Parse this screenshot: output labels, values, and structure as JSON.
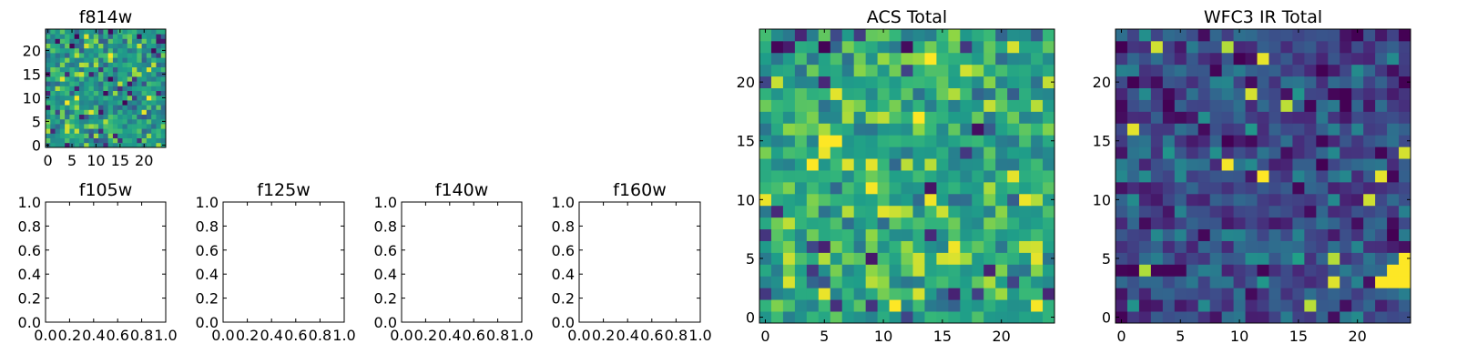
{
  "colors": {
    "low": "#440154",
    "mid": "#21918c",
    "high": "#fde725"
  },
  "chart_data": [
    {
      "id": "f814w",
      "type": "heatmap",
      "title": "f814w",
      "grid": [
        25,
        25
      ],
      "seed": 11,
      "bias": 0.6,
      "xlim": [
        -0.5,
        24.5
      ],
      "ylim": [
        -0.5,
        24.5
      ],
      "xticks": [
        0,
        5,
        10,
        15,
        20
      ],
      "yticks": [
        0,
        5,
        10,
        15,
        20
      ],
      "xticklabels": [
        "0",
        "5",
        "10",
        "15",
        "20"
      ],
      "yticklabels": [
        "0",
        "5",
        "10",
        "15",
        "20"
      ]
    },
    {
      "id": "f105w",
      "type": "empty",
      "title": "f105w",
      "xlim": [
        0,
        1
      ],
      "ylim": [
        0,
        1
      ],
      "xticks": [
        0,
        0.2,
        0.4,
        0.6,
        0.8,
        1.0
      ],
      "yticks": [
        0,
        0.2,
        0.4,
        0.6,
        0.8,
        1.0
      ],
      "xticklabels": [
        "0.0",
        "0.2",
        "0.4",
        "0.6",
        "0.8",
        "1.0"
      ],
      "yticklabels": [
        "0.0",
        "0.2",
        "0.4",
        "0.6",
        "0.8",
        "1.0"
      ]
    },
    {
      "id": "f125w",
      "type": "empty",
      "title": "f125w",
      "xlim": [
        0,
        1
      ],
      "ylim": [
        0,
        1
      ],
      "xticks": [
        0,
        0.2,
        0.4,
        0.6,
        0.8,
        1.0
      ],
      "yticks": [
        0,
        0.2,
        0.4,
        0.6,
        0.8,
        1.0
      ],
      "xticklabels": [
        "0.0",
        "0.2",
        "0.4",
        "0.6",
        "0.8",
        "1.0"
      ],
      "yticklabels": [
        "0.0",
        "0.2",
        "0.4",
        "0.6",
        "0.8",
        "1.0"
      ]
    },
    {
      "id": "f140w",
      "type": "empty",
      "title": "f140w",
      "xlim": [
        0,
        1
      ],
      "ylim": [
        0,
        1
      ],
      "xticks": [
        0,
        0.2,
        0.4,
        0.6,
        0.8,
        1.0
      ],
      "yticks": [
        0,
        0.2,
        0.4,
        0.6,
        0.8,
        1.0
      ],
      "xticklabels": [
        "0.0",
        "0.2",
        "0.4",
        "0.6",
        "0.8",
        "1.0"
      ],
      "yticklabels": [
        "0.0",
        "0.2",
        "0.4",
        "0.6",
        "0.8",
        "1.0"
      ]
    },
    {
      "id": "f160w",
      "type": "empty",
      "title": "f160w",
      "xlim": [
        0,
        1
      ],
      "ylim": [
        0,
        1
      ],
      "xticks": [
        0,
        0.2,
        0.4,
        0.6,
        0.8,
        1.0
      ],
      "yticks": [
        0,
        0.2,
        0.4,
        0.6,
        0.8,
        1.0
      ],
      "xticklabels": [
        "0.0",
        "0.2",
        "0.4",
        "0.6",
        "0.8",
        "1.0"
      ],
      "yticklabels": [
        "0.0",
        "0.2",
        "0.4",
        "0.6",
        "0.8",
        "1.0"
      ]
    },
    {
      "id": "acs-total",
      "type": "heatmap",
      "title": "ACS Total",
      "grid": [
        25,
        25
      ],
      "seed": 23,
      "bias": 0.68,
      "xlim": [
        -0.5,
        24.5
      ],
      "ylim": [
        -0.5,
        24.5
      ],
      "xticks": [
        0,
        5,
        10,
        15,
        20
      ],
      "yticks": [
        0,
        5,
        10,
        15,
        20
      ],
      "xticklabels": [
        "0",
        "5",
        "10",
        "15",
        "20"
      ],
      "yticklabels": [
        "0",
        "5",
        "10",
        "15",
        "20"
      ]
    },
    {
      "id": "wfc3-ir-total",
      "type": "heatmap",
      "title": "WFC3 IR Total",
      "grid": [
        25,
        25
      ],
      "seed": 37,
      "bias": 0.28,
      "xlim": [
        -0.5,
        24.5
      ],
      "ylim": [
        -0.5,
        24.5
      ],
      "xticks": [
        0,
        5,
        10,
        15,
        20
      ],
      "yticks": [
        0,
        5,
        10,
        15,
        20
      ],
      "xticklabels": [
        "0",
        "5",
        "10",
        "15",
        "20"
      ],
      "yticklabels": [
        "0",
        "5",
        "10",
        "15",
        "20"
      ],
      "hotspots": [
        {
          "x": 12,
          "y": 12,
          "value": 1.0
        },
        {
          "x": 22,
          "y": 3,
          "value": 1.0
        },
        {
          "x": 23,
          "y": 3,
          "value": 1.0
        },
        {
          "x": 24,
          "y": 3,
          "value": 1.0
        },
        {
          "x": 23,
          "y": 4,
          "value": 1.0
        },
        {
          "x": 24,
          "y": 4,
          "value": 1.0
        },
        {
          "x": 24,
          "y": 5,
          "value": 1.0
        }
      ]
    }
  ]
}
